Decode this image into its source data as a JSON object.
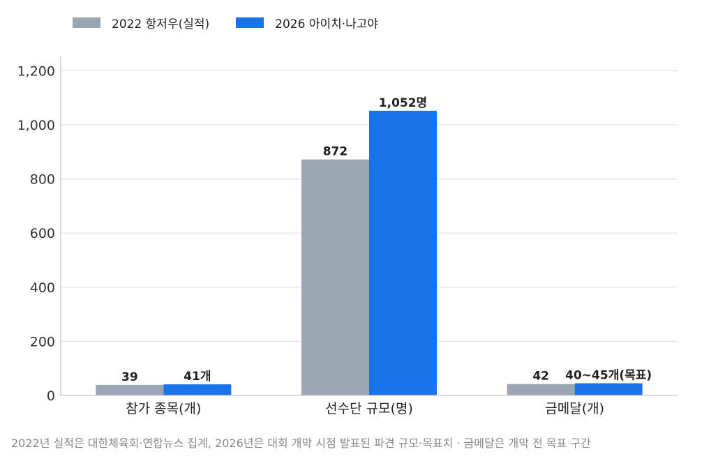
{
  "chart_data": {
    "type": "bar",
    "categories": [
      "참가 종목(개)",
      "선수단 규모(명)",
      "금메달(개)"
    ],
    "series": [
      {
        "name": "2022 항저우(실적)",
        "color": "#9aa6b2",
        "values": [
          39,
          872,
          42
        ],
        "labels": [
          "39",
          "872",
          "42"
        ]
      },
      {
        "name": "2026 아이치·나고야",
        "color": "#1a73e8",
        "values": [
          41,
          1052,
          45
        ],
        "labels": [
          "41개",
          "1,052명",
          "40~45개(목표)"
        ]
      }
    ],
    "ylim": [
      0,
      1250
    ],
    "yticks": [
      0,
      200,
      400,
      600,
      800,
      1000,
      1200
    ],
    "ytick_labels": [
      "0",
      "200",
      "400",
      "600",
      "800",
      "1,000",
      "1,200"
    ],
    "grid": true,
    "legend_position": "top-left"
  },
  "footnote": "2022년 실적은 대한체육회·연합뉴스 집계, 2026년은 대회 개막 시점 발표된 파견 규모·목표치 · 금메달은 개막 전 목표 구간"
}
